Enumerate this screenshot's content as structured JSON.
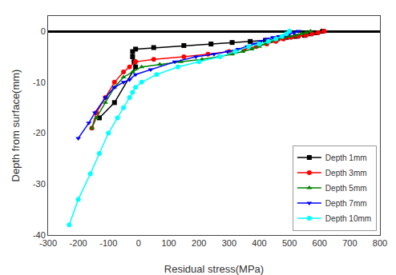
{
  "chart_data": {
    "type": "line",
    "xlabel": "Residual stress(MPa)",
    "ylabel": "Depth from surface(mm)",
    "series": [
      {
        "name": "Depth 1mm",
        "color": "black",
        "marker": "square",
        "x": [
          610,
          590,
          570,
          550,
          520,
          490,
          460,
          420,
          370,
          310,
          240,
          150,
          50,
          -10,
          -20,
          -20,
          -15,
          -10,
          -80,
          -130
        ],
        "values": [
          0,
          -0.3,
          -0.5,
          -0.8,
          -1.0,
          -1.2,
          -1.5,
          -1.8,
          -2.0,
          -2.2,
          -2.5,
          -2.8,
          -3.2,
          -3.5,
          -4,
          -5,
          -6,
          -7,
          -14,
          -17
        ]
      },
      {
        "name": "Depth 3mm",
        "color": "red",
        "marker": "circle",
        "x": [
          615,
          595,
          575,
          555,
          530,
          505,
          480,
          455,
          425,
          390,
          350,
          300,
          230,
          150,
          50,
          -10,
          -30,
          -50,
          -80,
          -110,
          -140,
          -155
        ],
        "values": [
          0,
          -0.3,
          -0.5,
          -0.8,
          -1.0,
          -1.2,
          -1.5,
          -2.0,
          -2.5,
          -3.0,
          -3.5,
          -4.0,
          -4.5,
          -5.0,
          -5.5,
          -6.0,
          -7,
          -8,
          -10,
          -13,
          -16,
          -19
        ]
      },
      {
        "name": "Depth 5mm",
        "color": "green",
        "marker": "triangle-up",
        "x": [
          570,
          555,
          540,
          520,
          500,
          480,
          460,
          440,
          420,
          400,
          375,
          345,
          310,
          265,
          210,
          140,
          70,
          10,
          -20,
          -50,
          -80,
          -110,
          -140,
          -155
        ],
        "values": [
          0,
          -0.3,
          -0.5,
          -0.8,
          -1.0,
          -1.2,
          -1.5,
          -2.0,
          -2.5,
          -3.0,
          -3.5,
          -4.0,
          -4.5,
          -5.0,
          -5.5,
          -6.0,
          -6.5,
          -7.0,
          -8,
          -9,
          -11,
          -14,
          -17,
          -19
        ]
      },
      {
        "name": "Depth 7mm",
        "color": "blue",
        "marker": "triangle-down",
        "x": [
          530,
          515,
          500,
          485,
          465,
          445,
          425,
          405,
          385,
          360,
          330,
          295,
          250,
          190,
          120,
          40,
          -10,
          -30,
          -50,
          -80,
          -110,
          -145,
          -165,
          -200
        ],
        "values": [
          0,
          -0.3,
          -0.5,
          -0.8,
          -1.0,
          -1.2,
          -1.5,
          -2.0,
          -2.5,
          -3.0,
          -3.5,
          -4.0,
          -4.5,
          -5.0,
          -6.0,
          -7.5,
          -8.5,
          -9.5,
          -10,
          -11,
          -13,
          -16,
          -18,
          -21
        ]
      },
      {
        "name": "Depth 10mm",
        "color": "cyan",
        "marker": "circle",
        "x": [
          500,
          490,
          475,
          455,
          430,
          400,
          365,
          320,
          270,
          200,
          130,
          60,
          10,
          -10,
          -20,
          -30,
          -50,
          -70,
          -100,
          -130,
          -160,
          -200,
          -230
        ],
        "values": [
          0,
          -0.5,
          -1.0,
          -1.5,
          -2.0,
          -2.5,
          -3.0,
          -4.0,
          -5.0,
          -6.0,
          -7.0,
          -8.5,
          -10,
          -11,
          -12,
          -13,
          -15,
          -17,
          -20,
          -24,
          -28,
          -33,
          -38
        ]
      }
    ],
    "xlim": [
      -300,
      800
    ],
    "xticks": [
      -300,
      -200,
      -100,
      0,
      100,
      200,
      300,
      400,
      500,
      600,
      700,
      800
    ],
    "ylim": [
      -40,
      3
    ],
    "yticks": [
      0,
      -10,
      -20,
      -30,
      -40
    ],
    "grid": false,
    "legend": "lower right"
  }
}
